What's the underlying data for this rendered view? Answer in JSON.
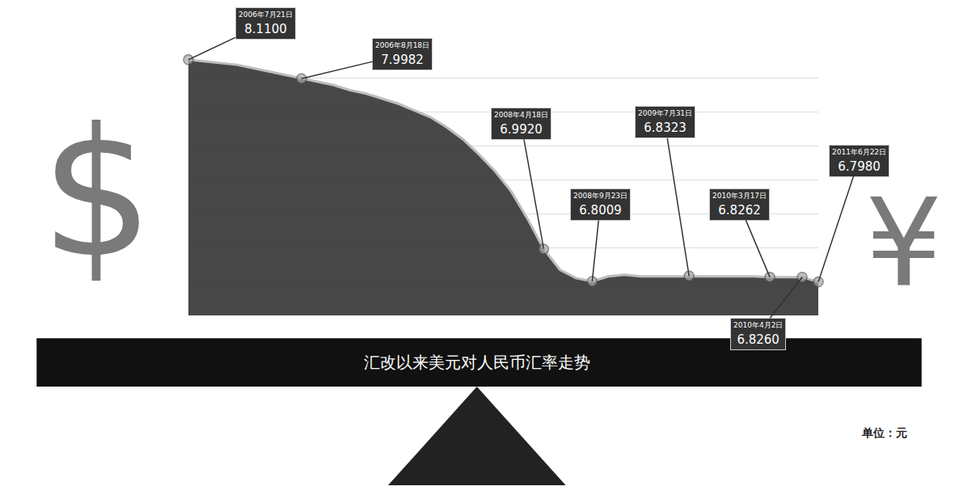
{
  "chart_data": {
    "type": "line",
    "title": "汇改以来美元对人民币汇率走势",
    "unit": "单位：元",
    "symbols": [
      "$",
      "¥"
    ],
    "categories": [
      "2006年7月21日",
      null,
      null,
      null,
      null,
      null,
      null,
      "2006年8月18日",
      null,
      null,
      null,
      null,
      null,
      null,
      null,
      null,
      null,
      null,
      null,
      null,
      null,
      null,
      "2008年4月18日",
      null,
      null,
      "2008年9月23日",
      null,
      null,
      null,
      null,
      null,
      "2009年7月31日",
      null,
      null,
      null,
      null,
      "2010年3月17日",
      null,
      "2010年4月2日",
      "2011年6月22日"
    ],
    "values": [
      8.11,
      8.1,
      8.09,
      8.08,
      8.06,
      8.04,
      8.02,
      7.9982,
      7.98,
      7.96,
      7.93,
      7.91,
      7.88,
      7.85,
      7.81,
      7.77,
      7.71,
      7.64,
      7.55,
      7.45,
      7.33,
      7.17,
      6.992,
      6.87,
      6.82,
      6.8009,
      6.83,
      6.84,
      6.83,
      6.83,
      6.83,
      6.8323,
      6.83,
      6.83,
      6.83,
      6.83,
      6.8262,
      6.826,
      6.826,
      6.798
    ],
    "value_labels": [
      "8.1100",
      null,
      null,
      null,
      null,
      null,
      null,
      "7.9982",
      null,
      null,
      null,
      null,
      null,
      null,
      null,
      null,
      null,
      null,
      null,
      null,
      null,
      null,
      "6.9920",
      null,
      null,
      "6.8009",
      null,
      null,
      null,
      null,
      null,
      "6.8323",
      null,
      null,
      null,
      null,
      "6.8262",
      null,
      "6.8260",
      "6.7980"
    ],
    "ylim": [
      6.6,
      8.2
    ],
    "yticks": [
      6.6,
      6.8,
      7,
      7.2,
      7.4,
      7.6,
      7.8,
      8,
      8.2
    ],
    "grid": true,
    "tick_labels": false,
    "data_labels": true,
    "color": "#bdbdbd"
  }
}
